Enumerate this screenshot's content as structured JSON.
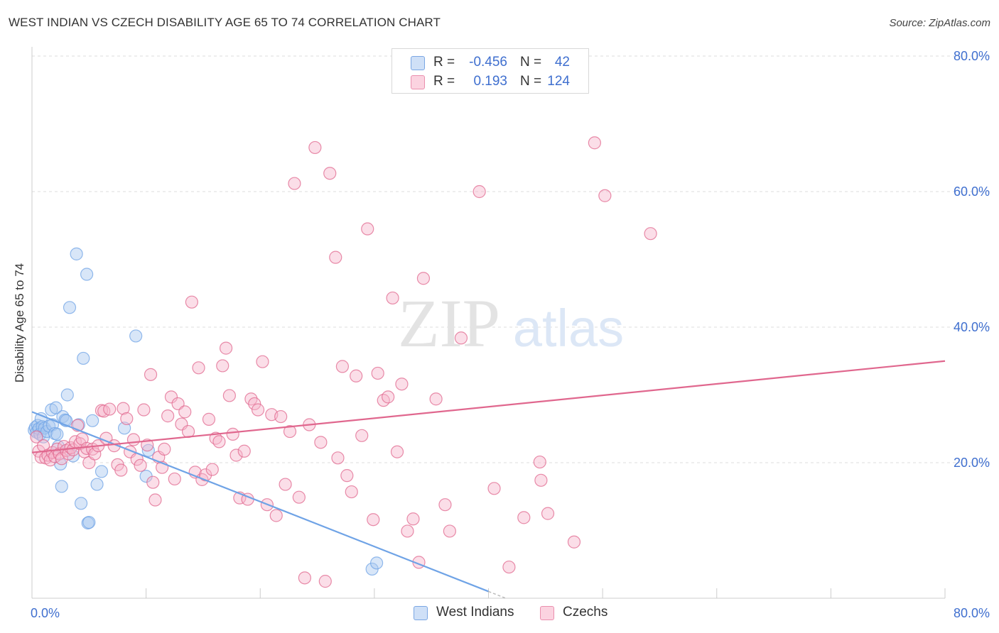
{
  "header": {
    "title": "WEST INDIAN VS CZECH DISABILITY AGE 65 TO 74 CORRELATION CHART",
    "source": "Source: ZipAtlas.com"
  },
  "watermark": {
    "zip": "ZIP",
    "atlas": "atlas"
  },
  "stats_legend": [
    {
      "r_label": "R =",
      "r_value": "-0.456",
      "n_label": "N =",
      "n_value": "42",
      "color": "#a9c8f0"
    },
    {
      "r_label": "R =",
      "r_value": "0.193",
      "n_label": "N =",
      "n_value": "124",
      "color": "#f6b6cb"
    }
  ],
  "bottom_legend": [
    {
      "label": "West Indians",
      "color": "#a9c8f0"
    },
    {
      "label": "Czechs",
      "color": "#f6b6cb"
    }
  ],
  "chart_data": {
    "type": "scatter",
    "ylabel": "Disability Age 65 to 74",
    "xlim": [
      0,
      80
    ],
    "ylim": [
      0,
      80
    ],
    "x_tick_labels": [
      "0.0%",
      "80.0%"
    ],
    "y_tick_values": [
      20,
      40,
      60,
      80
    ],
    "y_tick_labels": [
      "20.0%",
      "40.0%",
      "60.0%",
      "80.0%"
    ],
    "grid": true,
    "series": [
      {
        "name": "West Indians",
        "color": "#6fa3e6",
        "fill": "#a9c8f0",
        "trend": {
          "x0": 0,
          "y0": 27.5,
          "x1": 40,
          "y1": 1.0,
          "dash_to": 41.5
        },
        "points": [
          [
            0.2,
            24.8
          ],
          [
            0.3,
            25.2
          ],
          [
            0.4,
            24.5
          ],
          [
            0.5,
            25.5
          ],
          [
            0.6,
            25.0
          ],
          [
            0.7,
            24.2
          ],
          [
            0.8,
            26.5
          ],
          [
            0.9,
            25.3
          ],
          [
            1.0,
            23.8
          ],
          [
            1.1,
            25.1
          ],
          [
            1.3,
            24.6
          ],
          [
            1.5,
            25.4
          ],
          [
            1.7,
            27.8
          ],
          [
            1.8,
            25.6
          ],
          [
            2.0,
            24.3
          ],
          [
            2.1,
            28.1
          ],
          [
            2.2,
            24.2
          ],
          [
            2.3,
            22.4
          ],
          [
            2.5,
            19.8
          ],
          [
            2.6,
            16.5
          ],
          [
            2.7,
            26.8
          ],
          [
            2.9,
            26.3
          ],
          [
            3.0,
            26.2
          ],
          [
            3.1,
            30.0
          ],
          [
            3.3,
            42.9
          ],
          [
            3.6,
            21.0
          ],
          [
            3.9,
            50.8
          ],
          [
            4.1,
            25.6
          ],
          [
            4.3,
            14.0
          ],
          [
            4.5,
            35.4
          ],
          [
            4.8,
            47.8
          ],
          [
            4.9,
            11.1
          ],
          [
            5.0,
            11.2
          ],
          [
            5.3,
            26.2
          ],
          [
            5.7,
            16.8
          ],
          [
            6.1,
            18.7
          ],
          [
            8.1,
            25.1
          ],
          [
            9.1,
            38.7
          ],
          [
            10.0,
            18.0
          ],
          [
            10.2,
            21.8
          ],
          [
            29.8,
            4.3
          ],
          [
            30.2,
            5.2
          ]
        ]
      },
      {
        "name": "Czechs",
        "color": "#e0678e",
        "fill": "#f6b6cb",
        "trend": {
          "x0": 0,
          "y0": 21.5,
          "x1": 80,
          "y1": 35.0
        },
        "points": [
          [
            0.4,
            23.8
          ],
          [
            0.6,
            21.7
          ],
          [
            0.8,
            20.8
          ],
          [
            1.0,
            22.5
          ],
          [
            1.2,
            20.7
          ],
          [
            1.4,
            21.1
          ],
          [
            1.6,
            20.4
          ],
          [
            1.8,
            21.5
          ],
          [
            2.0,
            20.9
          ],
          [
            2.2,
            22.0
          ],
          [
            2.4,
            21.3
          ],
          [
            2.6,
            20.6
          ],
          [
            2.8,
            22.4
          ],
          [
            3.0,
            21.8
          ],
          [
            3.2,
            21.3
          ],
          [
            3.4,
            22.2
          ],
          [
            3.6,
            21.9
          ],
          [
            3.8,
            23.1
          ],
          [
            4.0,
            25.5
          ],
          [
            4.2,
            22.8
          ],
          [
            4.4,
            23.5
          ],
          [
            4.6,
            21.6
          ],
          [
            4.8,
            22.1
          ],
          [
            5.0,
            20.0
          ],
          [
            5.3,
            22.0
          ],
          [
            5.5,
            21.3
          ],
          [
            5.8,
            22.5
          ],
          [
            6.1,
            27.7
          ],
          [
            6.3,
            27.6
          ],
          [
            6.5,
            23.6
          ],
          [
            6.8,
            27.9
          ],
          [
            7.2,
            22.5
          ],
          [
            7.5,
            19.7
          ],
          [
            7.8,
            18.9
          ],
          [
            8.0,
            28.0
          ],
          [
            8.3,
            26.5
          ],
          [
            8.6,
            21.6
          ],
          [
            8.9,
            23.4
          ],
          [
            9.2,
            20.5
          ],
          [
            9.5,
            19.6
          ],
          [
            9.8,
            27.8
          ],
          [
            10.1,
            22.6
          ],
          [
            10.4,
            33.0
          ],
          [
            10.6,
            17.1
          ],
          [
            10.8,
            14.5
          ],
          [
            11.1,
            20.8
          ],
          [
            11.4,
            19.3
          ],
          [
            11.6,
            22.0
          ],
          [
            11.9,
            26.9
          ],
          [
            12.2,
            29.7
          ],
          [
            12.5,
            17.6
          ],
          [
            12.8,
            28.7
          ],
          [
            13.1,
            25.7
          ],
          [
            13.4,
            27.5
          ],
          [
            13.7,
            24.6
          ],
          [
            14.0,
            43.7
          ],
          [
            14.3,
            18.6
          ],
          [
            14.6,
            34.0
          ],
          [
            14.9,
            17.5
          ],
          [
            15.2,
            18.2
          ],
          [
            15.5,
            26.4
          ],
          [
            15.8,
            19.0
          ],
          [
            16.1,
            23.6
          ],
          [
            16.4,
            23.1
          ],
          [
            16.7,
            34.3
          ],
          [
            17.0,
            36.9
          ],
          [
            17.3,
            29.9
          ],
          [
            17.6,
            24.2
          ],
          [
            17.9,
            21.1
          ],
          [
            18.2,
            14.8
          ],
          [
            18.6,
            21.7
          ],
          [
            18.9,
            14.6
          ],
          [
            19.2,
            29.4
          ],
          [
            19.5,
            28.7
          ],
          [
            19.8,
            27.8
          ],
          [
            20.2,
            34.9
          ],
          [
            20.6,
            13.8
          ],
          [
            21.0,
            27.1
          ],
          [
            21.4,
            12.2
          ],
          [
            21.8,
            26.8
          ],
          [
            22.2,
            16.8
          ],
          [
            22.6,
            24.6
          ],
          [
            23.0,
            61.2
          ],
          [
            23.4,
            14.9
          ],
          [
            23.9,
            3.0
          ],
          [
            24.3,
            25.6
          ],
          [
            24.8,
            66.5
          ],
          [
            25.3,
            23.0
          ],
          [
            25.7,
            2.5
          ],
          [
            26.1,
            62.7
          ],
          [
            26.6,
            50.3
          ],
          [
            26.8,
            20.7
          ],
          [
            27.2,
            34.2
          ],
          [
            27.6,
            18.1
          ],
          [
            28.0,
            15.7
          ],
          [
            28.4,
            32.8
          ],
          [
            28.9,
            24.0
          ],
          [
            29.4,
            54.5
          ],
          [
            29.9,
            11.6
          ],
          [
            30.3,
            33.2
          ],
          [
            30.8,
            29.2
          ],
          [
            31.2,
            29.7
          ],
          [
            31.6,
            44.3
          ],
          [
            32.0,
            21.6
          ],
          [
            32.4,
            31.6
          ],
          [
            32.9,
            9.9
          ],
          [
            33.4,
            11.7
          ],
          [
            33.9,
            5.3
          ],
          [
            34.3,
            47.2
          ],
          [
            35.4,
            29.4
          ],
          [
            36.2,
            13.8
          ],
          [
            36.6,
            9.9
          ],
          [
            37.6,
            38.4
          ],
          [
            39.2,
            60.0
          ],
          [
            40.5,
            16.2
          ],
          [
            41.8,
            4.6
          ],
          [
            43.1,
            11.9
          ],
          [
            44.5,
            20.1
          ],
          [
            45.2,
            12.5
          ],
          [
            47.5,
            8.3
          ],
          [
            49.3,
            67.2
          ],
          [
            50.2,
            59.4
          ],
          [
            54.2,
            53.8
          ],
          [
            44.6,
            17.4
          ]
        ]
      }
    ]
  }
}
